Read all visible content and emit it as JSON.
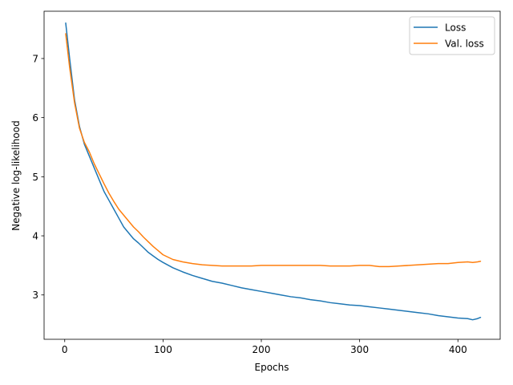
{
  "chart_data": {
    "type": "line",
    "title": "",
    "xlabel": "Epochs",
    "ylabel": "Negative log-likelihood",
    "xlim": [
      -21,
      443
    ],
    "ylim": [
      2.25,
      7.8
    ],
    "xticks": [
      0,
      100,
      200,
      300,
      400
    ],
    "yticks": [
      3,
      4,
      5,
      6,
      7
    ],
    "grid": false,
    "legend": "top-right",
    "series": [
      {
        "name": "Loss",
        "color": "#1f77b4",
        "x": [
          1,
          5,
          10,
          15,
          20,
          25,
          30,
          35,
          40,
          45,
          50,
          55,
          60,
          65,
          70,
          75,
          80,
          85,
          90,
          95,
          100,
          110,
          120,
          130,
          140,
          150,
          160,
          170,
          180,
          190,
          200,
          210,
          220,
          230,
          240,
          250,
          260,
          270,
          280,
          290,
          300,
          310,
          320,
          330,
          340,
          350,
          360,
          370,
          380,
          390,
          400,
          410,
          415,
          420,
          423
        ],
        "y": [
          7.6,
          7.0,
          6.3,
          5.85,
          5.55,
          5.35,
          5.15,
          4.95,
          4.75,
          4.6,
          4.45,
          4.3,
          4.15,
          4.05,
          3.95,
          3.88,
          3.8,
          3.72,
          3.66,
          3.6,
          3.55,
          3.46,
          3.39,
          3.33,
          3.28,
          3.23,
          3.2,
          3.16,
          3.12,
          3.09,
          3.06,
          3.03,
          3.0,
          2.97,
          2.95,
          2.92,
          2.9,
          2.87,
          2.85,
          2.83,
          2.82,
          2.8,
          2.78,
          2.76,
          2.74,
          2.72,
          2.7,
          2.68,
          2.65,
          2.63,
          2.61,
          2.6,
          2.58,
          2.6,
          2.62
        ]
      },
      {
        "name": "Val. loss",
        "color": "#ff7f0e",
        "x": [
          1,
          5,
          10,
          15,
          20,
          25,
          30,
          35,
          40,
          45,
          50,
          55,
          60,
          65,
          70,
          75,
          80,
          85,
          90,
          95,
          100,
          110,
          120,
          130,
          140,
          150,
          160,
          170,
          180,
          190,
          200,
          210,
          220,
          230,
          240,
          250,
          260,
          270,
          280,
          290,
          300,
          310,
          320,
          330,
          340,
          350,
          360,
          370,
          380,
          390,
          400,
          410,
          415,
          420,
          423
        ],
        "y": [
          7.42,
          6.85,
          6.25,
          5.82,
          5.58,
          5.42,
          5.22,
          5.05,
          4.88,
          4.72,
          4.58,
          4.45,
          4.35,
          4.25,
          4.15,
          4.07,
          3.98,
          3.9,
          3.82,
          3.75,
          3.68,
          3.6,
          3.56,
          3.53,
          3.51,
          3.5,
          3.49,
          3.49,
          3.49,
          3.49,
          3.5,
          3.5,
          3.5,
          3.5,
          3.5,
          3.5,
          3.5,
          3.49,
          3.49,
          3.49,
          3.5,
          3.5,
          3.48,
          3.48,
          3.49,
          3.5,
          3.51,
          3.52,
          3.53,
          3.53,
          3.55,
          3.56,
          3.55,
          3.56,
          3.57
        ]
      }
    ]
  }
}
